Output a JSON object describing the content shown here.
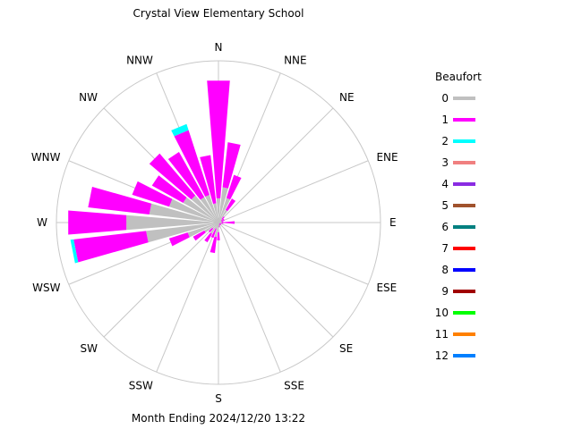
{
  "chart_data": {
    "type": "wind-rose",
    "title": "Crystal View Elementary School",
    "footer": "Month Ending 2024/12/20 13:22",
    "legend_title": "Beaufort",
    "directions": [
      "N",
      "NNE",
      "NE",
      "ENE",
      "E",
      "ESE",
      "SE",
      "SSE",
      "S",
      "SSW",
      "SW",
      "WSW",
      "W",
      "WNW",
      "NW",
      "NNW"
    ],
    "beaufort_levels": [
      {
        "label": "0",
        "color": "#c0c0c0"
      },
      {
        "label": "1",
        "color": "#ff00ff"
      },
      {
        "label": "2",
        "color": "#00ffff"
      },
      {
        "label": "3",
        "color": "#f08080"
      },
      {
        "label": "4",
        "color": "#8a2be2"
      },
      {
        "label": "5",
        "color": "#a0522d"
      },
      {
        "label": "6",
        "color": "#008080"
      },
      {
        "label": "7",
        "color": "#ff0000"
      },
      {
        "label": "8",
        "color": "#0000ff"
      },
      {
        "label": "9",
        "color": "#a00000"
      },
      {
        "label": "10",
        "color": "#00ff00"
      },
      {
        "label": "11",
        "color": "#ff8000"
      },
      {
        "label": "12",
        "color": "#0080ff"
      }
    ],
    "rmax": 100,
    "bins": [
      {
        "direction": "N",
        "center_deg": 0,
        "series": [
          15,
          73,
          0
        ]
      },
      {
        "direction": "N-NNE",
        "center_deg": 11.25,
        "series": [
          22,
          28,
          0
        ]
      },
      {
        "direction": "NNE",
        "center_deg": 22.5,
        "series": [
          16,
          15,
          0
        ]
      },
      {
        "direction": "NNE-NE",
        "center_deg": 33.75,
        "series": [
          9,
          8,
          0
        ]
      },
      {
        "direction": "NE",
        "center_deg": 45,
        "series": [
          3,
          2,
          0
        ]
      },
      {
        "direction": "NE-ENE",
        "center_deg": 56.25,
        "series": [
          2,
          2,
          0
        ]
      },
      {
        "direction": "ENE",
        "center_deg": 67.5,
        "series": [
          2,
          2,
          0
        ]
      },
      {
        "direction": "ENE-E",
        "center_deg": 78.75,
        "series": [
          2,
          1,
          0
        ]
      },
      {
        "direction": "E",
        "center_deg": 90,
        "series": [
          2,
          8,
          0
        ]
      },
      {
        "direction": "E-ESE",
        "center_deg": 101.25,
        "series": [
          2,
          1,
          0
        ]
      },
      {
        "direction": "ESE",
        "center_deg": 112.5,
        "series": [
          1,
          1,
          0
        ]
      },
      {
        "direction": "ESE-SE",
        "center_deg": 123.75,
        "series": [
          1,
          1,
          0
        ]
      },
      {
        "direction": "SE",
        "center_deg": 135,
        "series": [
          1,
          1,
          0
        ]
      },
      {
        "direction": "SE-SSE",
        "center_deg": 146.25,
        "series": [
          1,
          1,
          0
        ]
      },
      {
        "direction": "SSE",
        "center_deg": 157.5,
        "series": [
          1,
          1,
          0
        ]
      },
      {
        "direction": "SSE-S",
        "center_deg": 168.75,
        "series": [
          2,
          1,
          0
        ]
      },
      {
        "direction": "S",
        "center_deg": 180,
        "series": [
          6,
          5,
          0
        ]
      },
      {
        "direction": "S-SSW",
        "center_deg": 191.25,
        "series": [
          9,
          10,
          0
        ]
      },
      {
        "direction": "SSW",
        "center_deg": 202.5,
        "series": [
          4,
          6,
          0
        ]
      },
      {
        "direction": "SSW-SW",
        "center_deg": 213.75,
        "series": [
          8,
          6,
          0
        ]
      },
      {
        "direction": "SW",
        "center_deg": 225,
        "series": [
          5,
          3,
          0
        ]
      },
      {
        "direction": "SW-WSW",
        "center_deg": 236.25,
        "series": [
          10,
          8,
          0
        ]
      },
      {
        "direction": "WSW",
        "center_deg": 247.5,
        "series": [
          20,
          12,
          0
        ]
      },
      {
        "direction": "WSW-W",
        "center_deg": 258.75,
        "series": [
          45,
          45,
          2
        ]
      },
      {
        "direction": "W",
        "center_deg": 270,
        "series": [
          57,
          36,
          0
        ]
      },
      {
        "direction": "W-WNW",
        "center_deg": 281.25,
        "series": [
          43,
          38,
          0
        ]
      },
      {
        "direction": "WNW",
        "center_deg": 292.5,
        "series": [
          32,
          24,
          0
        ]
      },
      {
        "direction": "WNW-NW",
        "center_deg": 303.75,
        "series": [
          25,
          22,
          0
        ]
      },
      {
        "direction": "NW",
        "center_deg": 315,
        "series": [
          22,
          34,
          0
        ]
      },
      {
        "direction": "NW-NNW",
        "center_deg": 326.25,
        "series": [
          18,
          32,
          0
        ]
      },
      {
        "direction": "NNW",
        "center_deg": 337.5,
        "series": [
          18,
          42,
          4
        ]
      },
      {
        "direction": "NNW-N",
        "center_deg": 348.75,
        "series": [
          12,
          30,
          0
        ]
      }
    ]
  }
}
